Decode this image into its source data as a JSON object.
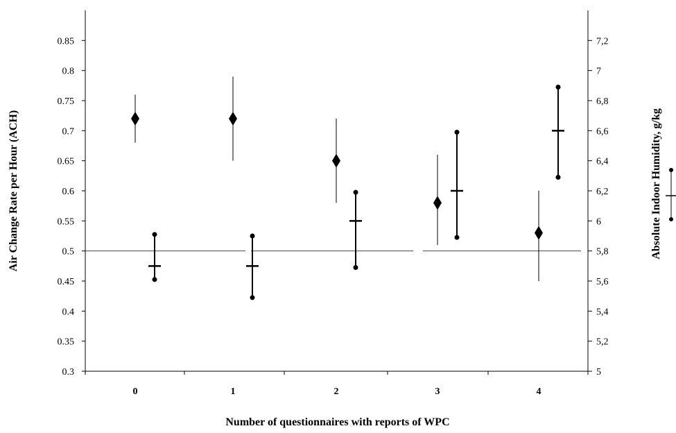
{
  "chart_data": {
    "type": "scatter",
    "title": "",
    "xlabel": "Number of questionnaires with reports of WPC",
    "ylabel": "Air Change Rate per Hour (ACH)",
    "y2label": "Absolute Indoor Humidity, g/kg",
    "categories": [
      "0",
      "1",
      "2",
      "3",
      "4"
    ],
    "ylim": [
      0.3,
      0.9
    ],
    "yticks": [
      "0.3",
      "0.35",
      "0.4",
      "0.45",
      "0.5",
      "0.55",
      "0.6",
      "0.65",
      "0.7",
      "0.75",
      "0.8",
      "0.85"
    ],
    "y2lim": [
      5,
      7.4
    ],
    "y2ticks": [
      "5",
      "5,2",
      "5,4",
      "5,6",
      "5,8",
      "6",
      "6,2",
      "6,4",
      "6,6",
      "6,8",
      "7",
      "7,2"
    ],
    "reference_line_ach": 0.5,
    "series": [
      {
        "axis": "left",
        "marker": "diamond",
        "points": [
          {
            "x": "0",
            "y": 0.72,
            "low": 0.68,
            "high": 0.76
          },
          {
            "x": "1",
            "y": 0.72,
            "low": 0.65,
            "high": 0.79
          },
          {
            "x": "2",
            "y": 0.65,
            "low": 0.58,
            "high": 0.72
          },
          {
            "x": "3",
            "y": 0.58,
            "low": 0.51,
            "high": 0.66
          },
          {
            "x": "4",
            "y": 0.53,
            "low": 0.45,
            "high": 0.6
          }
        ]
      },
      {
        "axis": "right",
        "marker": "dash-with-dot-whiskers",
        "points": [
          {
            "x": "0",
            "y": 5.7,
            "low": 5.61,
            "high": 5.91
          },
          {
            "x": "1",
            "y": 5.7,
            "low": 5.49,
            "high": 5.9
          },
          {
            "x": "2",
            "y": 6.0,
            "low": 5.69,
            "high": 6.19
          },
          {
            "x": "3",
            "y": 6.2,
            "low": 5.89,
            "high": 6.59
          },
          {
            "x": "4",
            "y": 6.6,
            "low": 6.29,
            "high": 6.89
          }
        ]
      }
    ],
    "legend": {
      "placement": "right",
      "marker": "dash-with-dot-whiskers"
    },
    "grid": false
  }
}
